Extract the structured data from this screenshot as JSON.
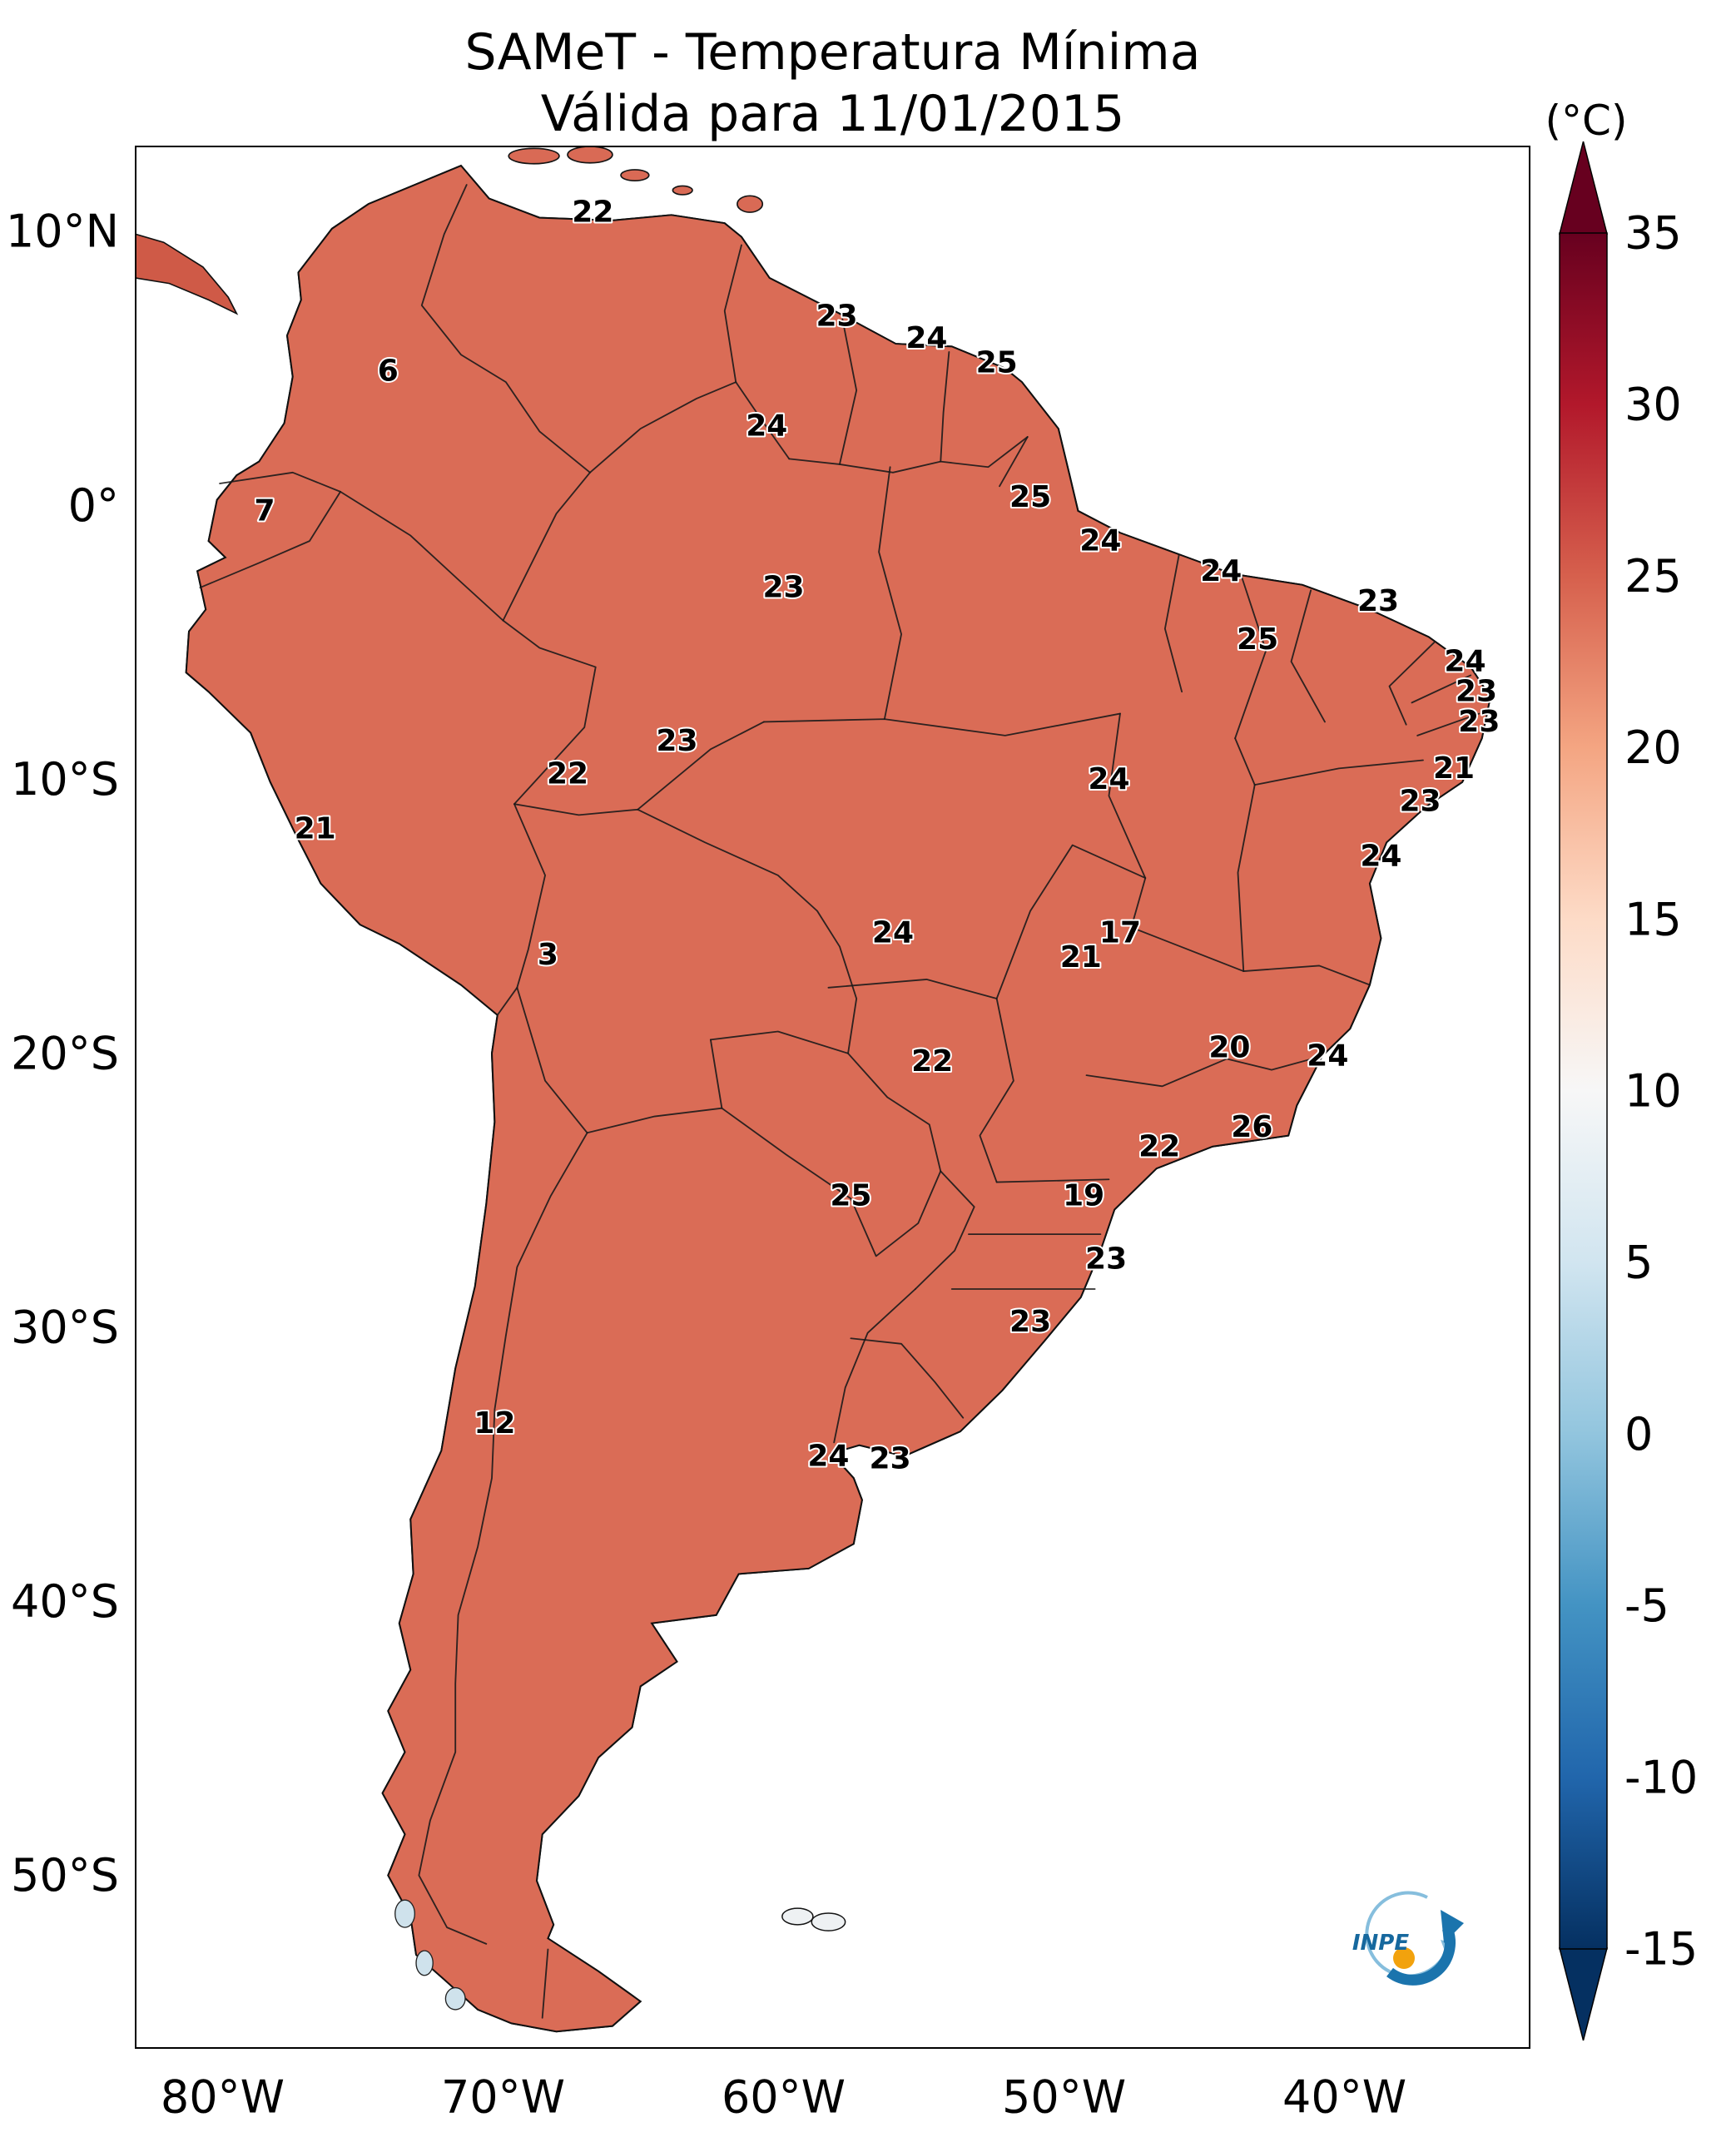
{
  "title": {
    "line1": "SAMeT - Temperatura Mínima",
    "line2": "Válida para 11/01/2015"
  },
  "colorbar": {
    "unit": "(°C)",
    "vmin": -15,
    "vmax": 35,
    "ticks": [
      35,
      30,
      25,
      20,
      15,
      10,
      5,
      0,
      -5,
      -10,
      -15
    ],
    "colors": [
      "#67001f",
      "#b2182b",
      "#d6604d",
      "#f4a582",
      "#fddbc7",
      "#f7f7f7",
      "#d1e5f0",
      "#92c5de",
      "#4393c3",
      "#2166ac",
      "#053061"
    ]
  },
  "axes": {
    "x_ticks": [
      {
        "label": "80°W",
        "lon": -80
      },
      {
        "label": "70°W",
        "lon": -70
      },
      {
        "label": "60°W",
        "lon": -60
      },
      {
        "label": "50°W",
        "lon": -50
      },
      {
        "label": "40°W",
        "lon": -40
      }
    ],
    "y_ticks": [
      {
        "label": "10°N",
        "lat": 10
      },
      {
        "label": "0°",
        "lat": 0
      },
      {
        "label": "10°S",
        "lat": -10
      },
      {
        "label": "20°S",
        "lat": -20
      },
      {
        "label": "30°S",
        "lat": -30
      },
      {
        "label": "40°S",
        "lat": -40
      },
      {
        "label": "50°S",
        "lat": -50
      }
    ]
  },
  "logo": {
    "text": "INPE"
  },
  "chart_data": {
    "type": "heatmap",
    "title": "SAMeT - Temperatura Mínima",
    "valid_date": "11/01/2015",
    "variable": "minimum air temperature",
    "unit": "°C",
    "region": "South America",
    "lon_range": [
      -83.1,
      -33.4
    ],
    "lat_range": [
      -56.3,
      13.1
    ],
    "value_range": [
      -15,
      35
    ],
    "colormap": "RdBu reversed (dark red = warm, dark blue = cold)",
    "station_labels": [
      {
        "lon": -66.8,
        "lat": 10.7,
        "value": 22
      },
      {
        "lon": -58.1,
        "lat": 6.9,
        "value": 23
      },
      {
        "lon": -54.9,
        "lat": 6.1,
        "value": 24
      },
      {
        "lon": -52.4,
        "lat": 5.2,
        "value": 25
      },
      {
        "lon": -74.1,
        "lat": 4.9,
        "value": 6
      },
      {
        "lon": -60.6,
        "lat": 2.9,
        "value": 24
      },
      {
        "lon": -51.2,
        "lat": 0.3,
        "value": 25
      },
      {
        "lon": -78.5,
        "lat": -0.2,
        "value": 7
      },
      {
        "lon": -48.7,
        "lat": -1.3,
        "value": 24
      },
      {
        "lon": -44.4,
        "lat": -2.4,
        "value": 24
      },
      {
        "lon": -60.0,
        "lat": -3.0,
        "value": 23
      },
      {
        "lon": -38.8,
        "lat": -3.5,
        "value": 23
      },
      {
        "lon": -43.1,
        "lat": -4.9,
        "value": 25
      },
      {
        "lon": -35.7,
        "lat": -5.7,
        "value": 24
      },
      {
        "lon": -35.3,
        "lat": -6.8,
        "value": 23
      },
      {
        "lon": -35.2,
        "lat": -7.9,
        "value": 23
      },
      {
        "lon": -63.8,
        "lat": -8.6,
        "value": 23
      },
      {
        "lon": -67.7,
        "lat": -9.8,
        "value": 22
      },
      {
        "lon": -48.4,
        "lat": -10.0,
        "value": 24
      },
      {
        "lon": -36.1,
        "lat": -9.6,
        "value": 21
      },
      {
        "lon": -37.3,
        "lat": -10.8,
        "value": 23
      },
      {
        "lon": -76.7,
        "lat": -11.8,
        "value": 21
      },
      {
        "lon": -38.7,
        "lat": -12.8,
        "value": 24
      },
      {
        "lon": -68.4,
        "lat": -16.4,
        "value": 3
      },
      {
        "lon": -56.1,
        "lat": -15.6,
        "value": 24
      },
      {
        "lon": -48.0,
        "lat": -15.6,
        "value": 17
      },
      {
        "lon": -49.4,
        "lat": -16.5,
        "value": 21
      },
      {
        "lon": -44.1,
        "lat": -19.8,
        "value": 20
      },
      {
        "lon": -40.6,
        "lat": -20.1,
        "value": 24
      },
      {
        "lon": -54.7,
        "lat": -20.3,
        "value": 22
      },
      {
        "lon": -43.3,
        "lat": -22.7,
        "value": 26
      },
      {
        "lon": -46.6,
        "lat": -23.4,
        "value": 22
      },
      {
        "lon": -57.6,
        "lat": -25.2,
        "value": 25
      },
      {
        "lon": -49.3,
        "lat": -25.2,
        "value": 19
      },
      {
        "lon": -48.5,
        "lat": -27.5,
        "value": 23
      },
      {
        "lon": -51.2,
        "lat": -29.8,
        "value": 23
      },
      {
        "lon": -70.3,
        "lat": -33.5,
        "value": 12
      },
      {
        "lon": -58.4,
        "lat": -34.7,
        "value": 24
      },
      {
        "lon": -56.2,
        "lat": -34.8,
        "value": 23
      }
    ]
  }
}
